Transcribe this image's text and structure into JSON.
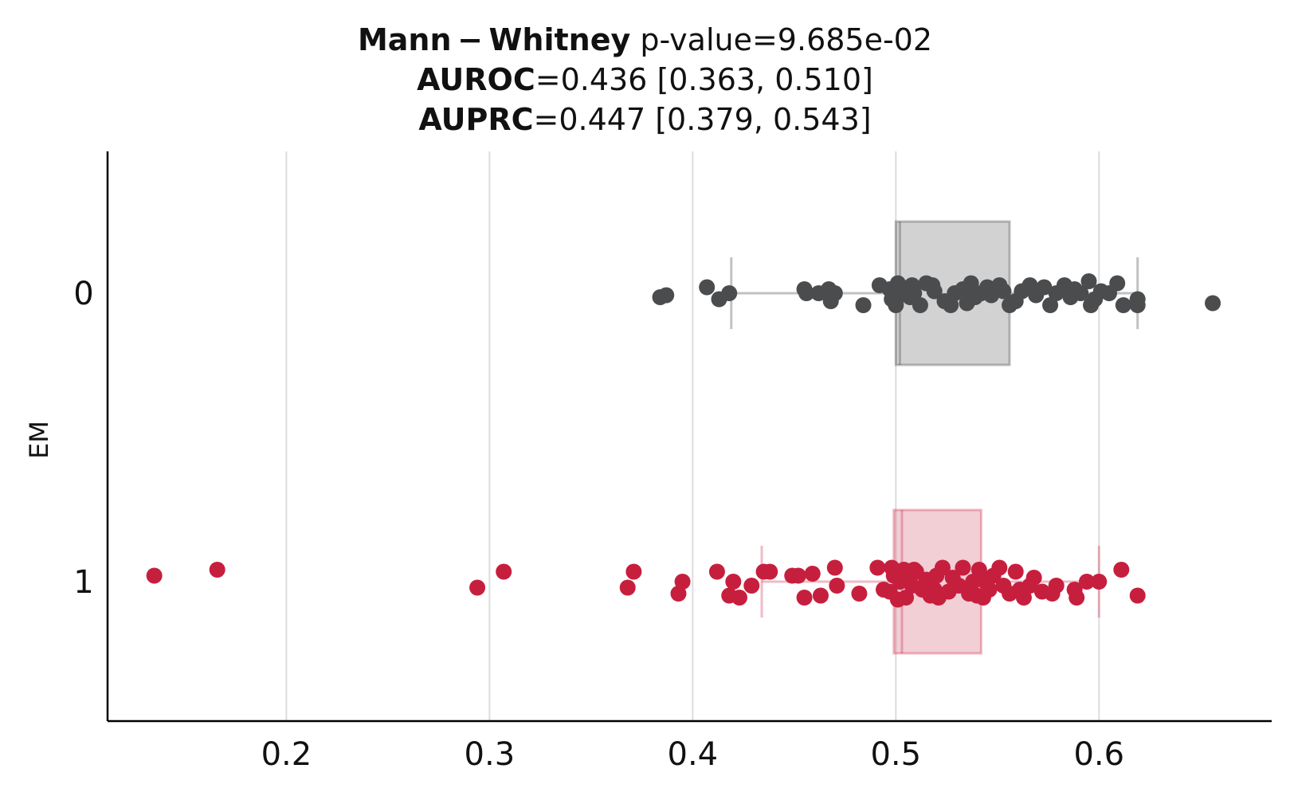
{
  "title": {
    "line1_bold": "Mann − Whitney",
    "line1_rest": " p-value=9.685e-02",
    "line2_bold": "AUROC",
    "line2_rest": "=0.436 [0.363, 0.510]",
    "line3_bold": "AUPRC",
    "line3_rest": "=0.447 [0.379, 0.543]"
  },
  "chart_data": {
    "type": "box-strip",
    "orientation": "horizontal",
    "xlim": [
      0.112,
      0.685
    ],
    "xticks": [
      "0.2",
      "0.3",
      "0.4",
      "0.5",
      "0.6"
    ],
    "xtick_values": [
      0.2,
      0.3,
      0.4,
      0.5,
      0.6
    ],
    "xlabel": "",
    "ylabel": "EM",
    "categories": [
      "0",
      "1"
    ],
    "grid": "vertical",
    "series": [
      {
        "category": "0",
        "color": "#4b4c4e",
        "box": {
          "whisker_low": 0.419,
          "q1": 0.5,
          "median": 0.502,
          "q3": 0.556,
          "whisker_high": 0.619
        },
        "points": [
          [
            0.384,
            -0.02
          ],
          [
            0.387,
            -0.01
          ],
          [
            0.407,
            0.03
          ],
          [
            0.413,
            -0.03
          ],
          [
            0.418,
            0.0
          ],
          [
            0.455,
            0.02
          ],
          [
            0.456,
            0.0
          ],
          [
            0.462,
            0.0
          ],
          [
            0.467,
            0.02
          ],
          [
            0.47,
            0.0
          ],
          [
            0.468,
            -0.04
          ],
          [
            0.484,
            -0.06
          ],
          [
            0.492,
            0.04
          ],
          [
            0.497,
            0.02
          ],
          [
            0.499,
            0.0
          ],
          [
            0.5,
            -0.04
          ],
          [
            0.5,
            -0.06
          ],
          [
            0.501,
            0.05
          ],
          [
            0.503,
            0.03
          ],
          [
            0.505,
            0.0
          ],
          [
            0.508,
            0.04
          ],
          [
            0.507,
            -0.02
          ],
          [
            0.512,
            -0.06
          ],
          [
            0.515,
            0.05
          ],
          [
            0.518,
            0.04
          ],
          [
            0.519,
            0.01
          ],
          [
            0.524,
            -0.04
          ],
          [
            0.527,
            -0.06
          ],
          [
            0.529,
            0.0
          ],
          [
            0.533,
            0.02
          ],
          [
            0.535,
            -0.05
          ],
          [
            0.537,
            0.05
          ],
          [
            0.539,
            -0.02
          ],
          [
            0.542,
            0.0
          ],
          [
            0.545,
            0.03
          ],
          [
            0.547,
            -0.01
          ],
          [
            0.551,
            0.04
          ],
          [
            0.553,
            0.01
          ],
          [
            0.556,
            -0.06
          ],
          [
            0.559,
            -0.04
          ],
          [
            0.562,
            0.01
          ],
          [
            0.566,
            0.04
          ],
          [
            0.569,
            -0.01
          ],
          [
            0.573,
            0.03
          ],
          [
            0.576,
            -0.06
          ],
          [
            0.579,
            0.0
          ],
          [
            0.583,
            0.04
          ],
          [
            0.586,
            -0.02
          ],
          [
            0.588,
            0.02
          ],
          [
            0.591,
            0.0
          ],
          [
            0.595,
            0.06
          ],
          [
            0.598,
            -0.03
          ],
          [
            0.601,
            0.01
          ],
          [
            0.605,
            0.0
          ],
          [
            0.609,
            0.05
          ],
          [
            0.612,
            -0.06
          ],
          [
            0.619,
            -0.03
          ],
          [
            0.619,
            -0.06
          ],
          [
            0.656,
            -0.05
          ],
          [
            0.596,
            -0.06
          ],
          [
            0.509,
            0.0
          ],
          [
            0.498,
            -0.03
          ]
        ]
      },
      {
        "category": "1",
        "color": "#c61f3e",
        "box": {
          "whisker_low": 0.434,
          "q1": 0.499,
          "median": 0.503,
          "q3": 0.542,
          "whisker_high": 0.6
        },
        "points": [
          [
            0.135,
            0.03
          ],
          [
            0.166,
            0.06
          ],
          [
            0.294,
            -0.03
          ],
          [
            0.307,
            0.05
          ],
          [
            0.368,
            -0.03
          ],
          [
            0.371,
            0.05
          ],
          [
            0.393,
            -0.06
          ],
          [
            0.395,
            0.0
          ],
          [
            0.412,
            0.05
          ],
          [
            0.418,
            -0.07
          ],
          [
            0.42,
            0.0
          ],
          [
            0.423,
            -0.08
          ],
          [
            0.429,
            -0.02
          ],
          [
            0.435,
            0.05
          ],
          [
            0.438,
            0.05
          ],
          [
            0.449,
            0.03
          ],
          [
            0.452,
            0.03
          ],
          [
            0.455,
            -0.08
          ],
          [
            0.459,
            0.04
          ],
          [
            0.463,
            -0.07
          ],
          [
            0.47,
            0.07
          ],
          [
            0.471,
            -0.02
          ],
          [
            0.482,
            -0.06
          ],
          [
            0.491,
            0.07
          ],
          [
            0.494,
            -0.04
          ],
          [
            0.497,
            -0.05
          ],
          [
            0.498,
            0.07
          ],
          [
            0.499,
            0.03
          ],
          [
            0.501,
            -0.09
          ],
          [
            0.502,
            0.0
          ],
          [
            0.504,
            0.06
          ],
          [
            0.506,
            0.03
          ],
          [
            0.508,
            -0.02
          ],
          [
            0.51,
            0.05
          ],
          [
            0.513,
            -0.04
          ],
          [
            0.515,
            0.01
          ],
          [
            0.517,
            -0.07
          ],
          [
            0.519,
            -0.04
          ],
          [
            0.52,
            0.03
          ],
          [
            0.523,
            0.07
          ],
          [
            0.526,
            -0.05
          ],
          [
            0.528,
            0.02
          ],
          [
            0.531,
            -0.02
          ],
          [
            0.533,
            0.07
          ],
          [
            0.536,
            -0.06
          ],
          [
            0.538,
            0.0
          ],
          [
            0.54,
            -0.07
          ],
          [
            0.541,
            0.06
          ],
          [
            0.544,
            0.0
          ],
          [
            0.546,
            -0.04
          ],
          [
            0.548,
            0.03
          ],
          [
            0.551,
            0.07
          ],
          [
            0.553,
            -0.02
          ],
          [
            0.556,
            -0.06
          ],
          [
            0.559,
            0.05
          ],
          [
            0.561,
            -0.04
          ],
          [
            0.563,
            -0.08
          ],
          [
            0.566,
            -0.02
          ],
          [
            0.568,
            0.02
          ],
          [
            0.572,
            -0.05
          ],
          [
            0.577,
            -0.06
          ],
          [
            0.579,
            -0.02
          ],
          [
            0.588,
            -0.04
          ],
          [
            0.589,
            -0.08
          ],
          [
            0.594,
            0.0
          ],
          [
            0.6,
            0.0
          ],
          [
            0.611,
            0.06
          ],
          [
            0.619,
            -0.07
          ],
          [
            0.5,
            0.04
          ],
          [
            0.509,
            0.06
          ],
          [
            0.521,
            -0.08
          ],
          [
            0.543,
            -0.08
          ],
          [
            0.505,
            -0.08
          ]
        ]
      }
    ]
  }
}
